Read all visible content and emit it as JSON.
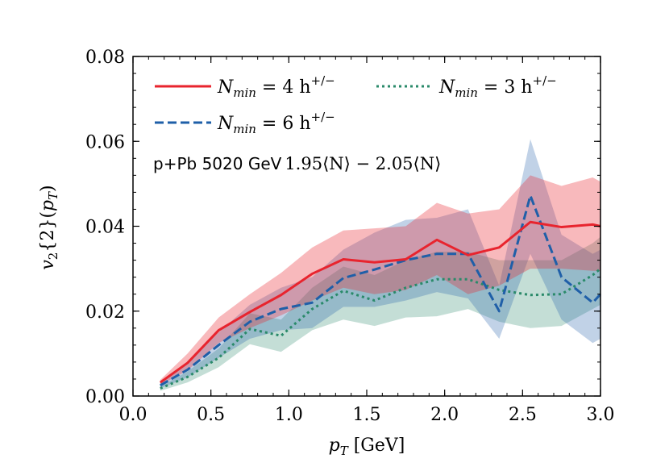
{
  "chart_data": {
    "type": "line",
    "title": "",
    "xlabel": "p_T [GeV]",
    "ylabel": "v_2{2}(p_T)",
    "xlim": [
      0.0,
      3.0
    ],
    "ylim": [
      0.0,
      0.08
    ],
    "x_ticks": [
      0.0,
      0.5,
      1.0,
      1.5,
      2.0,
      2.5,
      3.0
    ],
    "x_tick_labels": [
      "0.0",
      "0.5",
      "1.0",
      "1.5",
      "2.0",
      "2.5",
      "3.0"
    ],
    "y_ticks": [
      0.0,
      0.02,
      0.04,
      0.06,
      0.08
    ],
    "y_tick_labels": [
      "0.00",
      "0.02",
      "0.04",
      "0.06",
      "0.08"
    ],
    "annotation": {
      "system": "p+Pb 5020 GeV",
      "range": "1.95⟨N⟩ − 2.05⟨N⟩"
    },
    "legend_position": "top",
    "series": [
      {
        "name": "N_min = 4 h^{+/-}",
        "label_main": "N",
        "label_sub": "min",
        "label_rest": " = 4 h",
        "label_sup": "+/−",
        "color": "#e8242e",
        "style": "solid",
        "x": [
          0.175,
          0.35,
          0.55,
          0.75,
          0.95,
          1.15,
          1.35,
          1.55,
          1.75,
          1.95,
          2.15,
          2.35,
          2.55,
          2.75,
          2.95,
          3.0
        ],
        "values": [
          0.0032,
          0.0078,
          0.0155,
          0.0198,
          0.0238,
          0.0288,
          0.0322,
          0.0315,
          0.0322,
          0.0368,
          0.0332,
          0.035,
          0.041,
          0.0398,
          0.0404,
          0.04
        ],
        "upper": [
          0.0038,
          0.01,
          0.0185,
          0.024,
          0.029,
          0.035,
          0.039,
          0.0395,
          0.04,
          0.0455,
          0.043,
          0.044,
          0.052,
          0.0495,
          0.0515,
          0.0505
        ],
        "lower": [
          0.0026,
          0.006,
          0.0125,
          0.016,
          0.019,
          0.0225,
          0.0255,
          0.024,
          0.025,
          0.0285,
          0.024,
          0.026,
          0.03,
          0.03,
          0.0295,
          0.0295
        ]
      },
      {
        "name": "N_min = 3 h^{+/-}",
        "label_main": "N",
        "label_sub": "min",
        "label_rest": " = 3 h",
        "label_sup": "+/−",
        "color": "#2a8a6a",
        "style": "dotted",
        "x": [
          0.175,
          0.35,
          0.55,
          0.75,
          0.95,
          1.15,
          1.35,
          1.55,
          1.75,
          1.95,
          2.15,
          2.35,
          2.55,
          2.75,
          2.95,
          3.0
        ],
        "values": [
          0.0018,
          0.0045,
          0.009,
          0.0158,
          0.0142,
          0.0205,
          0.0248,
          0.0225,
          0.0255,
          0.0275,
          0.0275,
          0.025,
          0.0238,
          0.024,
          0.0285,
          0.03
        ],
        "upper": [
          0.0022,
          0.0058,
          0.0112,
          0.0195,
          0.018,
          0.0255,
          0.0305,
          0.0285,
          0.032,
          0.034,
          0.034,
          0.032,
          0.032,
          0.032,
          0.036,
          0.0375
        ],
        "lower": [
          0.0012,
          0.0032,
          0.0068,
          0.0122,
          0.0104,
          0.0155,
          0.018,
          0.0165,
          0.0185,
          0.0188,
          0.0205,
          0.0175,
          0.016,
          0.0165,
          0.0205,
          0.0215
        ]
      },
      {
        "name": "N_min = 6 h^{+/-}",
        "label_main": "N",
        "label_sub": "min",
        "label_rest": " = 6 h",
        "label_sup": "+/−",
        "color": "#1f5fa8",
        "style": "dashed",
        "x": [
          0.175,
          0.35,
          0.55,
          0.75,
          0.95,
          1.15,
          1.35,
          1.55,
          1.75,
          1.95,
          2.15,
          2.35,
          2.55,
          2.75,
          2.95,
          3.0
        ],
        "values": [
          0.0025,
          0.0062,
          0.012,
          0.0175,
          0.0205,
          0.022,
          0.0278,
          0.0298,
          0.032,
          0.0335,
          0.0335,
          0.02,
          0.0472,
          0.028,
          0.022,
          0.024
        ],
        "upper": [
          0.0032,
          0.008,
          0.015,
          0.0215,
          0.0255,
          0.028,
          0.0345,
          0.0385,
          0.0415,
          0.042,
          0.044,
          0.026,
          0.0605,
          0.038,
          0.0335,
          0.0345
        ],
        "lower": [
          0.0018,
          0.0044,
          0.009,
          0.0135,
          0.0155,
          0.016,
          0.021,
          0.021,
          0.0225,
          0.0245,
          0.023,
          0.0135,
          0.0335,
          0.018,
          0.0125,
          0.0135
        ]
      }
    ]
  }
}
